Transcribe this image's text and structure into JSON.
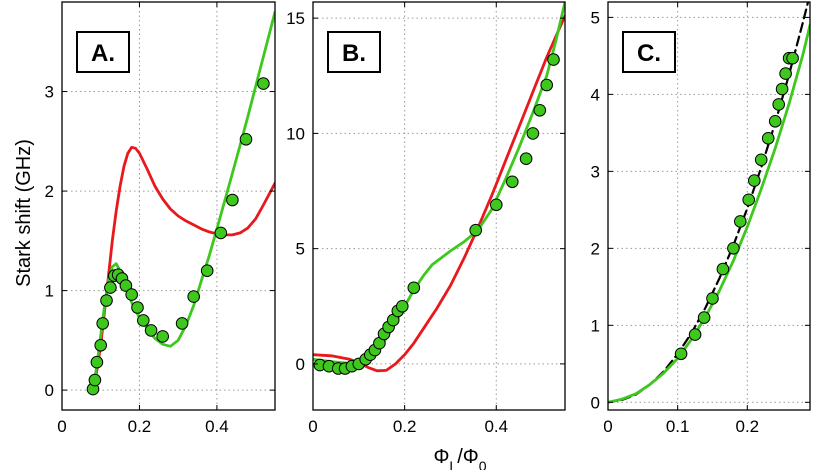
{
  "chart_data": [
    {
      "type": "line",
      "panel_label": "A.",
      "ylabel": "Stark shift (GHz)",
      "xlabel": "",
      "xlim": [
        0,
        0.55
      ],
      "ylim": [
        -0.2,
        3.9
      ],
      "xticks": [
        0,
        0.2,
        0.4
      ],
      "xtick_labels": [
        "0",
        "0.2",
        "0.4"
      ],
      "yticks": [
        0,
        1,
        2,
        3
      ],
      "ytick_labels": [
        "0",
        "1",
        "2",
        "3"
      ],
      "grid": true,
      "series": [
        {
          "name": "red-theory",
          "color": "#e8181c",
          "x": [
            0.08,
            0.09,
            0.1,
            0.11,
            0.12,
            0.13,
            0.14,
            0.15,
            0.16,
            0.17,
            0.18,
            0.19,
            0.2,
            0.22,
            0.24,
            0.26,
            0.28,
            0.3,
            0.32,
            0.34,
            0.36,
            0.38,
            0.4,
            0.42,
            0.44,
            0.46,
            0.48,
            0.5,
            0.52,
            0.55
          ],
          "y": [
            0.0,
            0.2,
            0.45,
            0.8,
            1.15,
            1.5,
            1.8,
            2.05,
            2.25,
            2.38,
            2.44,
            2.43,
            2.38,
            2.22,
            2.05,
            1.92,
            1.82,
            1.75,
            1.7,
            1.66,
            1.62,
            1.59,
            1.57,
            1.56,
            1.56,
            1.58,
            1.63,
            1.72,
            1.86,
            2.08
          ]
        },
        {
          "name": "green-theory",
          "color": "#3ec81e",
          "x": [
            0.08,
            0.09,
            0.1,
            0.11,
            0.12,
            0.13,
            0.14,
            0.15,
            0.16,
            0.17,
            0.18,
            0.19,
            0.2,
            0.22,
            0.24,
            0.26,
            0.28,
            0.3,
            0.32,
            0.34,
            0.36,
            0.38,
            0.4,
            0.42,
            0.44,
            0.46,
            0.48,
            0.5,
            0.52,
            0.55
          ],
          "y": [
            0.0,
            0.25,
            0.55,
            0.85,
            1.1,
            1.24,
            1.27,
            1.2,
            1.08,
            0.97,
            0.88,
            0.8,
            0.73,
            0.62,
            0.52,
            0.46,
            0.44,
            0.5,
            0.65,
            0.85,
            1.1,
            1.35,
            1.62,
            1.9,
            2.18,
            2.46,
            2.75,
            3.05,
            3.35,
            3.8
          ]
        },
        {
          "name": "measured",
          "kind": "scatter",
          "color": "#3ec81e",
          "x": [
            0.08,
            0.085,
            0.09,
            0.1,
            0.105,
            0.115,
            0.125,
            0.135,
            0.145,
            0.155,
            0.165,
            0.18,
            0.195,
            0.21,
            0.23,
            0.26,
            0.31,
            0.34,
            0.375,
            0.41,
            0.44,
            0.475,
            0.52
          ],
          "y": [
            0.01,
            0.1,
            0.28,
            0.45,
            0.67,
            0.9,
            1.03,
            1.15,
            1.16,
            1.12,
            1.05,
            0.96,
            0.83,
            0.7,
            0.6,
            0.54,
            0.67,
            0.94,
            1.2,
            1.58,
            1.91,
            2.52,
            3.08
          ]
        }
      ]
    },
    {
      "type": "line",
      "panel_label": "B.",
      "ylabel": "",
      "xlabel": "Φ_L/Φ_0",
      "xlim": [
        0,
        0.55
      ],
      "ylim": [
        -2,
        15.7
      ],
      "xticks": [
        0,
        0.2,
        0.4
      ],
      "xtick_labels": [
        "0",
        "0.2",
        "0.4"
      ],
      "yticks": [
        0,
        5,
        10,
        15
      ],
      "ytick_labels": [
        "0",
        "5",
        "10",
        "15"
      ],
      "grid": true,
      "series": [
        {
          "name": "red-theory",
          "color": "#e8181c",
          "x": [
            0.0,
            0.04,
            0.08,
            0.1,
            0.12,
            0.14,
            0.16,
            0.18,
            0.2,
            0.22,
            0.24,
            0.27,
            0.3,
            0.33,
            0.36,
            0.39,
            0.42,
            0.45,
            0.48,
            0.51,
            0.55
          ],
          "y": [
            0.4,
            0.35,
            0.2,
            0.05,
            -0.15,
            -0.3,
            -0.28,
            0.0,
            0.4,
            0.9,
            1.5,
            2.4,
            3.4,
            4.6,
            5.9,
            7.3,
            8.8,
            10.3,
            11.8,
            13.3,
            15.1
          ]
        },
        {
          "name": "green-theory",
          "color": "#3ec81e",
          "x": [
            0.0,
            0.04,
            0.08,
            0.1,
            0.12,
            0.14,
            0.16,
            0.18,
            0.2,
            0.22,
            0.24,
            0.26,
            0.28,
            0.3,
            0.33,
            0.36,
            0.39,
            0.42,
            0.45,
            0.48,
            0.51,
            0.53,
            0.55
          ],
          "y": [
            0.2,
            0.1,
            0.02,
            0.0,
            0.2,
            0.6,
            1.1,
            1.8,
            2.5,
            3.2,
            3.8,
            4.3,
            4.6,
            4.9,
            5.3,
            5.8,
            6.7,
            8.0,
            9.4,
            10.9,
            12.5,
            14.0,
            15.7
          ]
        },
        {
          "name": "measured",
          "kind": "scatter",
          "color": "#3ec81e",
          "x": [
            0.015,
            0.035,
            0.055,
            0.07,
            0.085,
            0.1,
            0.115,
            0.125,
            0.135,
            0.145,
            0.155,
            0.165,
            0.175,
            0.185,
            0.195,
            0.22,
            0.355,
            0.4,
            0.435,
            0.465,
            0.48,
            0.495,
            0.51,
            0.525
          ],
          "y": [
            -0.05,
            -0.1,
            -0.2,
            -0.2,
            -0.1,
            0.0,
            0.2,
            0.4,
            0.6,
            0.9,
            1.3,
            1.6,
            1.9,
            2.3,
            2.5,
            3.3,
            5.8,
            6.9,
            7.9,
            8.9,
            10.0,
            11.0,
            12.1,
            13.2
          ]
        }
      ]
    },
    {
      "type": "line",
      "panel_label": "C.",
      "ylabel": "",
      "xlabel": "",
      "xlim": [
        0,
        0.29
      ],
      "ylim": [
        -0.1,
        5.2
      ],
      "xticks": [
        0,
        0.1,
        0.2
      ],
      "xtick_labels": [
        "0",
        "0.1",
        "0.2"
      ],
      "yticks": [
        0,
        1,
        2,
        3,
        4,
        5
      ],
      "ytick_labels": [
        "0",
        "1",
        "2",
        "3",
        "4",
        "5"
      ],
      "grid": true,
      "series": [
        {
          "name": "dashed-fit",
          "color": "#000000",
          "dashed": true,
          "x": [
            0.0,
            0.02,
            0.04,
            0.06,
            0.08,
            0.1,
            0.12,
            0.14,
            0.16,
            0.18,
            0.2,
            0.22,
            0.24,
            0.26,
            0.28,
            0.29
          ],
          "y": [
            0.0,
            0.03,
            0.1,
            0.23,
            0.4,
            0.63,
            0.9,
            1.23,
            1.61,
            2.04,
            2.52,
            3.05,
            3.63,
            4.26,
            4.94,
            5.3
          ]
        },
        {
          "name": "green-theory",
          "color": "#3ec81e",
          "x": [
            0.0,
            0.02,
            0.04,
            0.06,
            0.08,
            0.1,
            0.12,
            0.14,
            0.16,
            0.18,
            0.2,
            0.22,
            0.24,
            0.26,
            0.28,
            0.29
          ],
          "y": [
            0.0,
            0.04,
            0.11,
            0.23,
            0.38,
            0.57,
            0.82,
            1.11,
            1.45,
            1.84,
            2.28,
            2.77,
            3.3,
            3.88,
            4.52,
            4.9
          ]
        },
        {
          "name": "measured",
          "kind": "scatter",
          "color": "#3ec81e",
          "x": [
            0.105,
            0.125,
            0.138,
            0.15,
            0.165,
            0.18,
            0.19,
            0.202,
            0.21,
            0.22,
            0.23,
            0.24,
            0.245,
            0.25,
            0.255,
            0.26,
            0.265
          ],
          "y": [
            0.63,
            0.88,
            1.1,
            1.35,
            1.73,
            2.0,
            2.35,
            2.63,
            2.88,
            3.15,
            3.43,
            3.65,
            3.87,
            4.07,
            4.27,
            4.47,
            4.47
          ]
        }
      ]
    }
  ]
}
